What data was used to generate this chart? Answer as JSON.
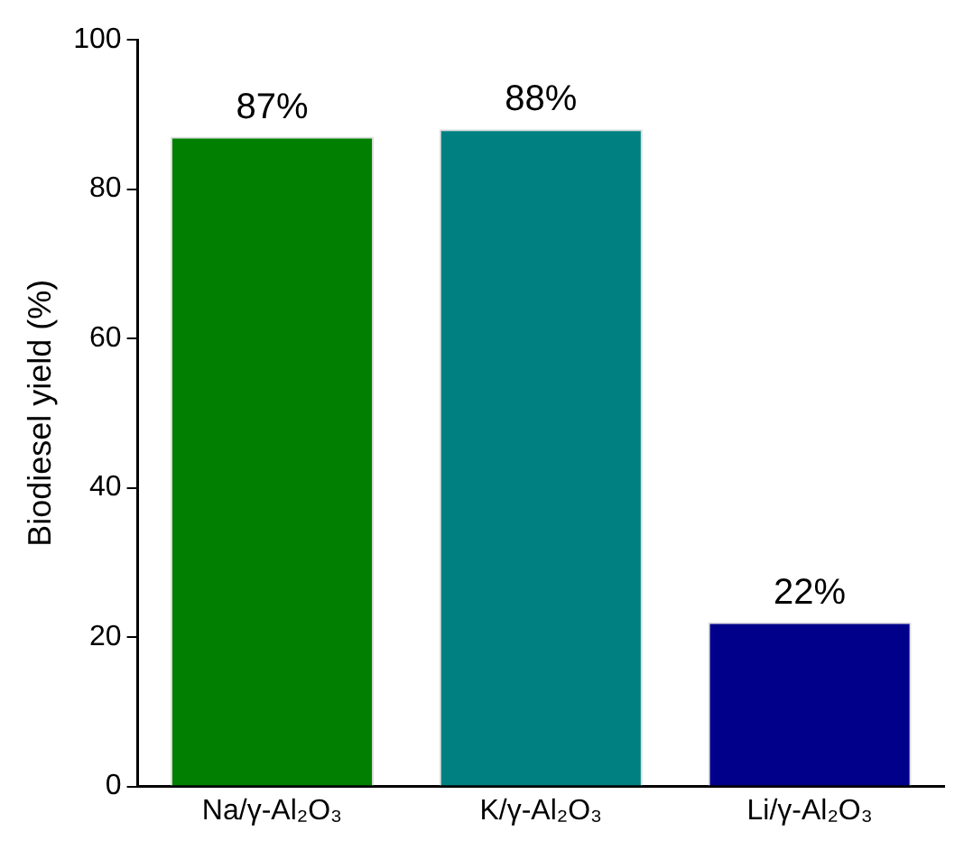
{
  "chart_data": {
    "type": "bar",
    "ylabel": "Biodiesel yield (%)",
    "categories": [
      "Na/γ-Al₂O₃",
      "K/γ-Al₂O₃",
      "Li/γ-Al₂O₃"
    ],
    "values": [
      87,
      88,
      22
    ],
    "value_labels": [
      "87%",
      "88%",
      "22%"
    ],
    "colors": [
      "#007f00",
      "#008080",
      "#00008b"
    ],
    "ylim": [
      0,
      100
    ],
    "yticks": [
      0,
      20,
      40,
      60,
      80,
      100
    ],
    "grid": false,
    "legend": false
  }
}
